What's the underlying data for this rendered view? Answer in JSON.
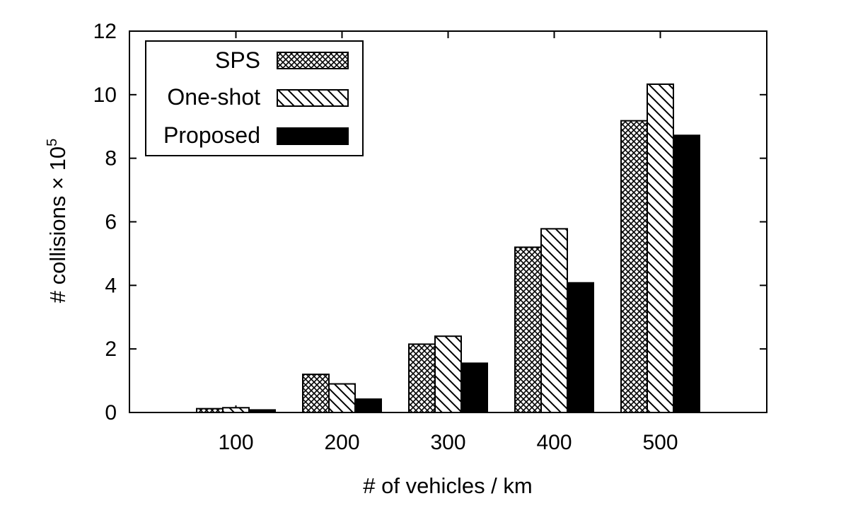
{
  "chart_data": {
    "type": "bar",
    "xlabel": "# of vehicles / km",
    "ylabel": {
      "base": "# collisions × 10",
      "exponent": "5"
    },
    "categories": [
      "100",
      "200",
      "300",
      "400",
      "500"
    ],
    "series": [
      {
        "name": "SPS",
        "pattern": "crosshatch",
        "values": [
          0.12,
          1.2,
          2.15,
          5.2,
          9.18
        ]
      },
      {
        "name": "One-shot",
        "pattern": "diagonal",
        "values": [
          0.15,
          0.9,
          2.4,
          5.78,
          10.33
        ]
      },
      {
        "name": "Proposed",
        "pattern": "solid",
        "color": "#000000",
        "values": [
          0.08,
          0.42,
          1.55,
          4.08,
          8.72
        ]
      }
    ],
    "ylim": [
      0,
      12
    ],
    "yticks": [
      0,
      2,
      4,
      6,
      8,
      10,
      12
    ],
    "legend_position": "top-left",
    "grid": false
  }
}
